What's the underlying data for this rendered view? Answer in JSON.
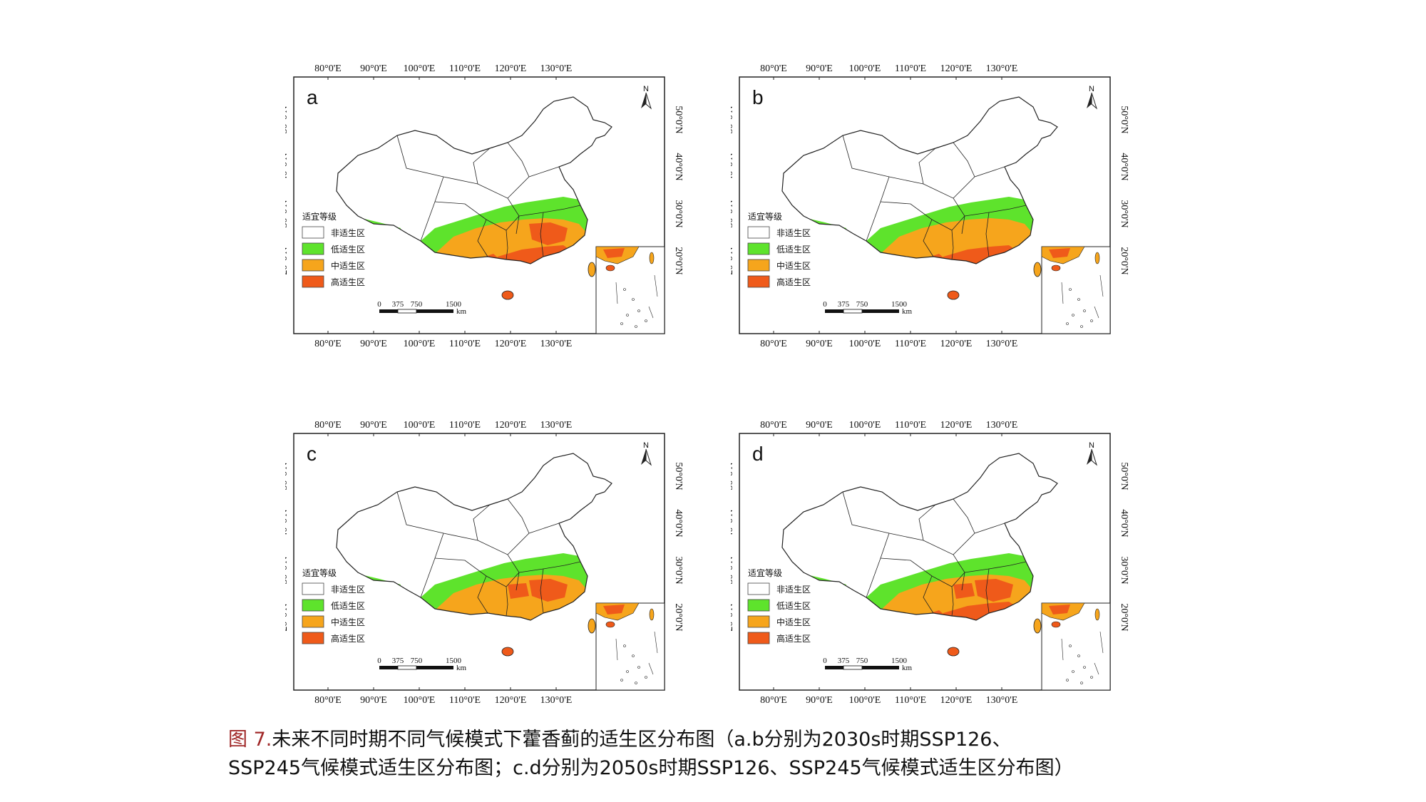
{
  "figure": {
    "panels": [
      {
        "letter": "a"
      },
      {
        "letter": "b"
      },
      {
        "letter": "c"
      },
      {
        "letter": "d"
      }
    ],
    "axes": {
      "lon_ticks": [
        "80°0'E",
        "90°0'E",
        "100°0'E",
        "110°0'E",
        "120°0'E",
        "130°0'E"
      ],
      "lat_ticks": [
        "50°0'N",
        "40°0'N",
        "30°0'N",
        "20°0'N"
      ]
    },
    "legend": {
      "title": "适宜等级",
      "items": [
        {
          "label": "非适生区",
          "color": "#ffffff"
        },
        {
          "label": "低适生区",
          "color": "#5ee32c"
        },
        {
          "label": "中适生区",
          "color": "#f6a51c"
        },
        {
          "label": "高适生区",
          "color": "#ef5a1a"
        }
      ]
    },
    "scale_bar": {
      "ticks": [
        "0",
        "375",
        "750",
        "1500"
      ],
      "unit": "km"
    },
    "north_label": "N",
    "colors": {
      "low": "#5ee32c",
      "medium": "#f6a51c",
      "high": "#ef5a1a",
      "border": "#222222",
      "caption_prefix": "#a02828"
    }
  },
  "caption": {
    "prefix": "图 7.",
    "line1": "未来不同时期不同气候模式下藿香蓟的适生区分布图（a.b分别为2030s时期SSP126、",
    "line2": "SSP245气候模式适生区分布图；c.d分别为2050s时期SSP126、SSP245气候模式适生区分布图）"
  }
}
